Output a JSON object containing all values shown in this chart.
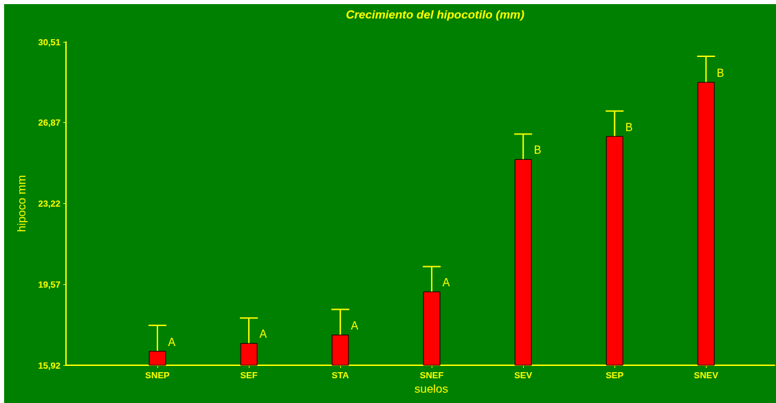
{
  "chart_data": {
    "type": "bar",
    "title": "Crecimiento del hipocotilo (mm)",
    "xlabel": "suelos",
    "ylabel": "hipoco mm",
    "categories": [
      "SNEP",
      "SEF",
      "STA",
      "SNEF",
      "SEV",
      "SEP",
      "SNEV"
    ],
    "values": [
      16.57,
      16.92,
      17.3,
      19.25,
      25.22,
      26.26,
      28.7
    ],
    "errors": [
      [
        16.57,
        17.72
      ],
      [
        16.92,
        18.05
      ],
      [
        17.3,
        18.44
      ],
      [
        19.25,
        20.37
      ],
      [
        25.22,
        26.35
      ],
      [
        26.26,
        27.39
      ],
      [
        28.7,
        29.86
      ]
    ],
    "value_labels": [
      "A",
      "A",
      "A",
      "A",
      "B",
      "B",
      "B"
    ],
    "color": "#ff0000",
    "ylim": [
      15.92,
      30.51
    ],
    "yticks": [
      {
        "value": 15.92,
        "label": "15,92"
      },
      {
        "value": 19.57,
        "label": "19,57"
      },
      {
        "value": 23.22,
        "label": "23,22"
      },
      {
        "value": 26.87,
        "label": "26,87"
      },
      {
        "value": 30.51,
        "label": "30,51"
      }
    ],
    "grid": false
  }
}
